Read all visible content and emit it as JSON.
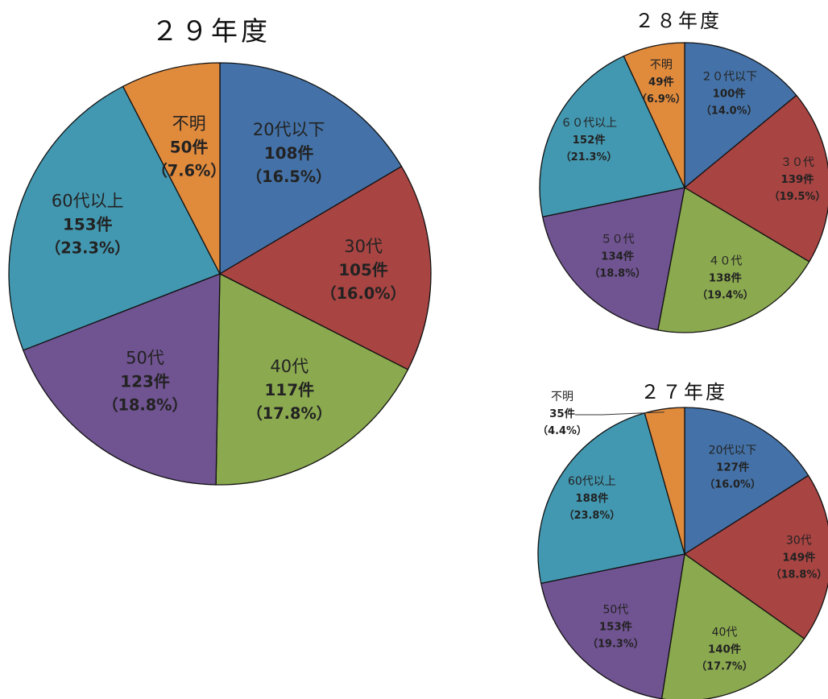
{
  "chart_data": [
    {
      "type": "pie",
      "title": "２９年度",
      "slices": [
        {
          "category": "20代以下",
          "count_label": "108件",
          "pct_label": "（16.5%）",
          "percent": 16.5,
          "color": "#4472a8"
        },
        {
          "category": "30代",
          "count_label": "105件",
          "pct_label": "（16.0%）",
          "percent": 16.0,
          "color": "#a84442"
        },
        {
          "category": "40代",
          "count_label": "117件",
          "pct_label": "（17.8%）",
          "percent": 17.8,
          "color": "#8ba94f"
        },
        {
          "category": "50代",
          "count_label": "123件",
          "pct_label": "（18.8%）",
          "percent": 18.8,
          "color": "#705391"
        },
        {
          "category": "60代以上",
          "count_label": "153件",
          "pct_label": "（23.3%）",
          "percent": 23.3,
          "color": "#4398b1"
        },
        {
          "category": "不明",
          "count_label": "50件",
          "pct_label": "（7.6%）",
          "percent": 7.6,
          "color": "#e08a3c"
        }
      ]
    },
    {
      "type": "pie",
      "title": "２８年度",
      "slices": [
        {
          "category": "２０代以下",
          "count_label": "100件",
          "pct_label": "（14.0%）",
          "percent": 14.0,
          "color": "#4472a8"
        },
        {
          "category": "３０代",
          "count_label": "139件",
          "pct_label": "（19.5%）",
          "percent": 19.5,
          "color": "#a84442"
        },
        {
          "category": "４０代",
          "count_label": "138件",
          "pct_label": "（19.4%）",
          "percent": 19.4,
          "color": "#8ba94f"
        },
        {
          "category": "５０代",
          "count_label": "134件",
          "pct_label": "（18.8%）",
          "percent": 18.8,
          "color": "#705391"
        },
        {
          "category": "６０代以上",
          "count_label": "152件",
          "pct_label": "（21.3%）",
          "percent": 21.3,
          "color": "#4398b1"
        },
        {
          "category": "不明",
          "count_label": "49件",
          "pct_label": "（6.9%）",
          "percent": 6.9,
          "color": "#e08a3c"
        }
      ]
    },
    {
      "type": "pie",
      "title": "２７年度",
      "slices": [
        {
          "category": "20代以下",
          "count_label": "127件",
          "pct_label": "（16.0%）",
          "percent": 16.0,
          "color": "#4472a8"
        },
        {
          "category": "30代",
          "count_label": "149件",
          "pct_label": "（18.8%）",
          "percent": 18.8,
          "color": "#a84442"
        },
        {
          "category": "40代",
          "count_label": "140件",
          "pct_label": "（17.7%）",
          "percent": 17.7,
          "color": "#8ba94f"
        },
        {
          "category": "50代",
          "count_label": "153件",
          "pct_label": "（19.3%）",
          "percent": 19.3,
          "color": "#705391"
        },
        {
          "category": "60代以上",
          "count_label": "188件",
          "pct_label": "（23.8%）",
          "percent": 23.8,
          "color": "#4398b1"
        },
        {
          "category": "不明",
          "count_label": "35件",
          "pct_label": "（4.4%）",
          "percent": 4.4,
          "color": "#e08a3c"
        }
      ]
    }
  ]
}
